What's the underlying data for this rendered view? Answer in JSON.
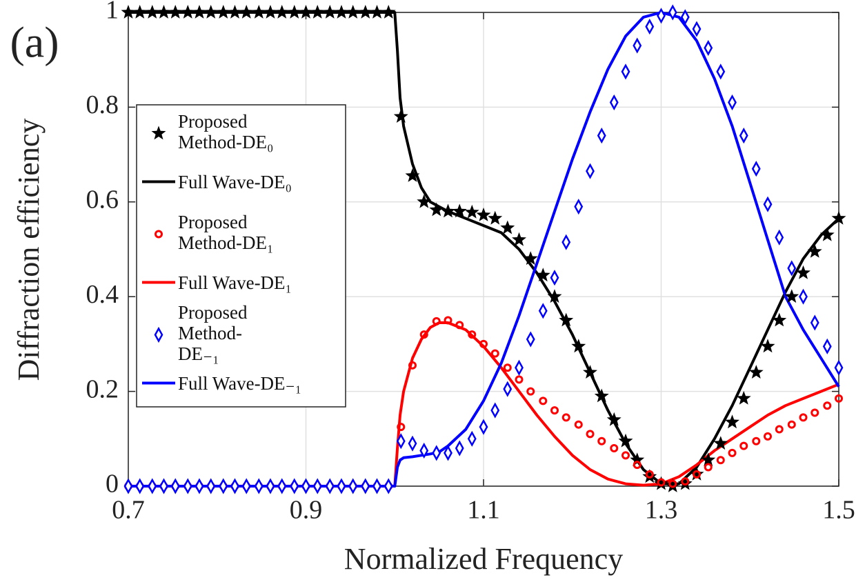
{
  "chart_data": {
    "type": "line",
    "annotation": "(a)",
    "xlabel": "Normalized Frequency",
    "ylabel": "Diffraction efficiency",
    "xlim": [
      0.7,
      1.5
    ],
    "xticks": [
      0.7,
      0.9,
      1.1,
      1.3,
      1.5
    ],
    "ylim": [
      0,
      1
    ],
    "yticks": [
      0,
      0.2,
      0.4,
      0.6,
      0.8,
      1
    ],
    "grid": true,
    "legend": "left",
    "x_markers": [
      0.7,
      0.713,
      0.727,
      0.74,
      0.753,
      0.767,
      0.78,
      0.793,
      0.807,
      0.82,
      0.833,
      0.847,
      0.86,
      0.873,
      0.887,
      0.9,
      0.913,
      0.927,
      0.94,
      0.953,
      0.967,
      0.98,
      0.993,
      1.007,
      1.02,
      1.033,
      1.047,
      1.06,
      1.073,
      1.087,
      1.1,
      1.113,
      1.127,
      1.14,
      1.153,
      1.167,
      1.18,
      1.193,
      1.207,
      1.22,
      1.233,
      1.247,
      1.26,
      1.273,
      1.287,
      1.3,
      1.313,
      1.327,
      1.34,
      1.353,
      1.367,
      1.38,
      1.393,
      1.407,
      1.42,
      1.433,
      1.447,
      1.46,
      1.473,
      1.487,
      1.5
    ],
    "x_lines": [
      0.7,
      0.99,
      1.0,
      1.003,
      1.006,
      1.01,
      1.02,
      1.03,
      1.04,
      1.05,
      1.06,
      1.08,
      1.1,
      1.12,
      1.14,
      1.16,
      1.18,
      1.2,
      1.22,
      1.24,
      1.26,
      1.28,
      1.3,
      1.32,
      1.34,
      1.36,
      1.38,
      1.4,
      1.42,
      1.44,
      1.46,
      1.48,
      1.5
    ],
    "series": [
      {
        "name": "Proposed Method-DE₀",
        "color": "#000000",
        "style": "star",
        "values": [
          1,
          1,
          1,
          1,
          1,
          1,
          1,
          1,
          1,
          1,
          1,
          1,
          1,
          1,
          1,
          1,
          1,
          1,
          1,
          1,
          1,
          1,
          1,
          0.78,
          0.655,
          0.6,
          0.583,
          0.58,
          0.58,
          0.578,
          0.572,
          0.565,
          0.545,
          0.52,
          0.48,
          0.445,
          0.4,
          0.35,
          0.295,
          0.24,
          0.19,
          0.14,
          0.095,
          0.055,
          0.02,
          0.005,
          0,
          0.005,
          0.025,
          0.055,
          0.09,
          0.135,
          0.185,
          0.24,
          0.295,
          0.35,
          0.4,
          0.45,
          0.495,
          0.53,
          0.565
        ]
      },
      {
        "name": "Full Wave-DE₀",
        "color": "#000000",
        "style": "line",
        "values": [
          1,
          1,
          1,
          0.92,
          0.82,
          0.76,
          0.68,
          0.63,
          0.6,
          0.59,
          0.58,
          0.565,
          0.55,
          0.535,
          0.5,
          0.45,
          0.39,
          0.32,
          0.24,
          0.16,
          0.09,
          0.035,
          0.005,
          0.005,
          0.04,
          0.1,
          0.17,
          0.25,
          0.33,
          0.41,
          0.48,
          0.53,
          0.565
        ]
      },
      {
        "name": "Proposed Method-DE₁",
        "color": "#ff0000",
        "style": "circle",
        "values": [
          0,
          0,
          0,
          0,
          0,
          0,
          0,
          0,
          0,
          0,
          0,
          0,
          0,
          0,
          0,
          0,
          0,
          0,
          0,
          0,
          0,
          0,
          0,
          0.125,
          0.255,
          0.32,
          0.348,
          0.35,
          0.34,
          0.32,
          0.3,
          0.28,
          0.25,
          0.225,
          0.2,
          0.18,
          0.16,
          0.145,
          0.13,
          0.11,
          0.095,
          0.08,
          0.065,
          0.045,
          0.025,
          0.008,
          0.005,
          0.01,
          0.025,
          0.04,
          0.055,
          0.07,
          0.085,
          0.095,
          0.105,
          0.12,
          0.13,
          0.145,
          0.155,
          0.17,
          0.185
        ]
      },
      {
        "name": "Full Wave-DE₁",
        "color": "#ff0000",
        "style": "line",
        "values": [
          0,
          0,
          0,
          0.08,
          0.15,
          0.2,
          0.27,
          0.31,
          0.335,
          0.345,
          0.345,
          0.33,
          0.295,
          0.25,
          0.2,
          0.15,
          0.105,
          0.065,
          0.035,
          0.015,
          0.005,
          0.002,
          0.005,
          0.02,
          0.045,
          0.075,
          0.1,
          0.125,
          0.15,
          0.17,
          0.185,
          0.2,
          0.215
        ]
      },
      {
        "name": "Proposed Method-DE₋₁",
        "color": "#0000ff",
        "style": "diamond",
        "values": [
          0,
          0,
          0,
          0,
          0,
          0,
          0,
          0,
          0,
          0,
          0,
          0,
          0,
          0,
          0,
          0,
          0,
          0,
          0,
          0,
          0,
          0,
          0,
          0.095,
          0.09,
          0.075,
          0.07,
          0.07,
          0.08,
          0.1,
          0.125,
          0.16,
          0.205,
          0.25,
          0.31,
          0.37,
          0.44,
          0.515,
          0.59,
          0.665,
          0.74,
          0.81,
          0.875,
          0.93,
          0.97,
          0.993,
          1,
          0.99,
          0.965,
          0.925,
          0.875,
          0.81,
          0.74,
          0.67,
          0.595,
          0.525,
          0.46,
          0.4,
          0.345,
          0.295,
          0.25
        ]
      },
      {
        "name": "Full Wave-DE₋₁",
        "color": "#0000ff",
        "style": "line",
        "values": [
          0,
          0,
          0,
          0.04,
          0.055,
          0.06,
          0.062,
          0.065,
          0.068,
          0.072,
          0.085,
          0.12,
          0.18,
          0.26,
          0.36,
          0.47,
          0.58,
          0.69,
          0.79,
          0.88,
          0.95,
          0.99,
          1,
          0.99,
          0.94,
          0.86,
          0.76,
          0.64,
          0.52,
          0.4,
          0.33,
          0.27,
          0.21
        ]
      }
    ]
  }
}
